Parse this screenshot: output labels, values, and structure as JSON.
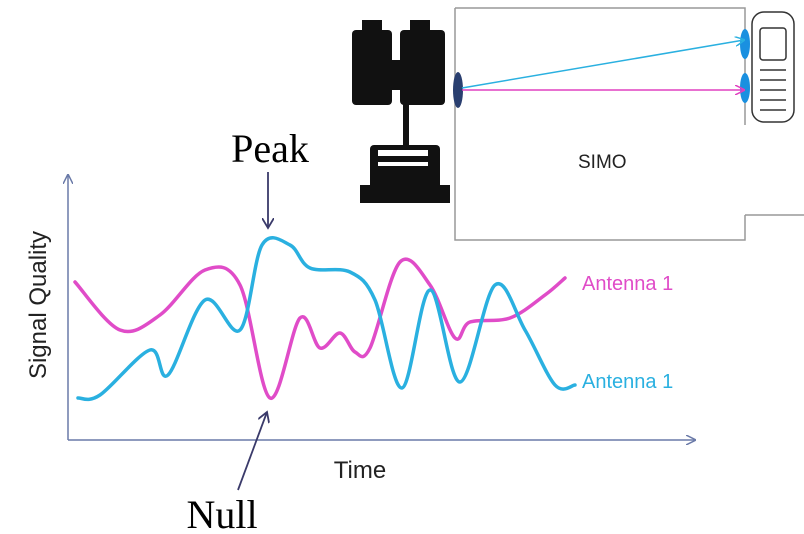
{
  "diagram": {
    "peak_label": "Peak",
    "null_label": "Null",
    "y_axis_label": "Signal Quality",
    "x_axis_label": "Time",
    "series_labels": [
      "Antenna 1",
      "Antenna 1"
    ],
    "box_label": "SIMO"
  }
}
